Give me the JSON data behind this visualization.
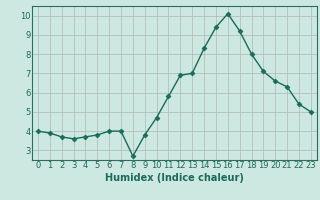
{
  "x": [
    0,
    1,
    2,
    3,
    4,
    5,
    6,
    7,
    8,
    9,
    10,
    11,
    12,
    13,
    14,
    15,
    16,
    17,
    18,
    19,
    20,
    21,
    22,
    23
  ],
  "y": [
    4.0,
    3.9,
    3.7,
    3.6,
    3.7,
    3.8,
    4.0,
    4.0,
    2.7,
    3.8,
    4.7,
    5.8,
    6.9,
    7.0,
    8.3,
    9.4,
    10.1,
    9.2,
    8.0,
    7.1,
    6.6,
    6.3,
    5.4,
    5.0
  ],
  "line_color": "#1a6b5a",
  "marker": "D",
  "marker_size": 2.5,
  "bg_color": "#cce8e0",
  "grid_color": "#b0b8b4",
  "xlabel": "Humidex (Indice chaleur)",
  "xlim": [
    -0.5,
    23.5
  ],
  "ylim": [
    2.5,
    10.5
  ],
  "yticks": [
    3,
    4,
    5,
    6,
    7,
    8,
    9,
    10
  ],
  "xticks": [
    0,
    1,
    2,
    3,
    4,
    5,
    6,
    7,
    8,
    9,
    10,
    11,
    12,
    13,
    14,
    15,
    16,
    17,
    18,
    19,
    20,
    21,
    22,
    23
  ],
  "tick_fontsize": 6,
  "label_fontsize": 7,
  "spine_color": "#2e6e5e"
}
